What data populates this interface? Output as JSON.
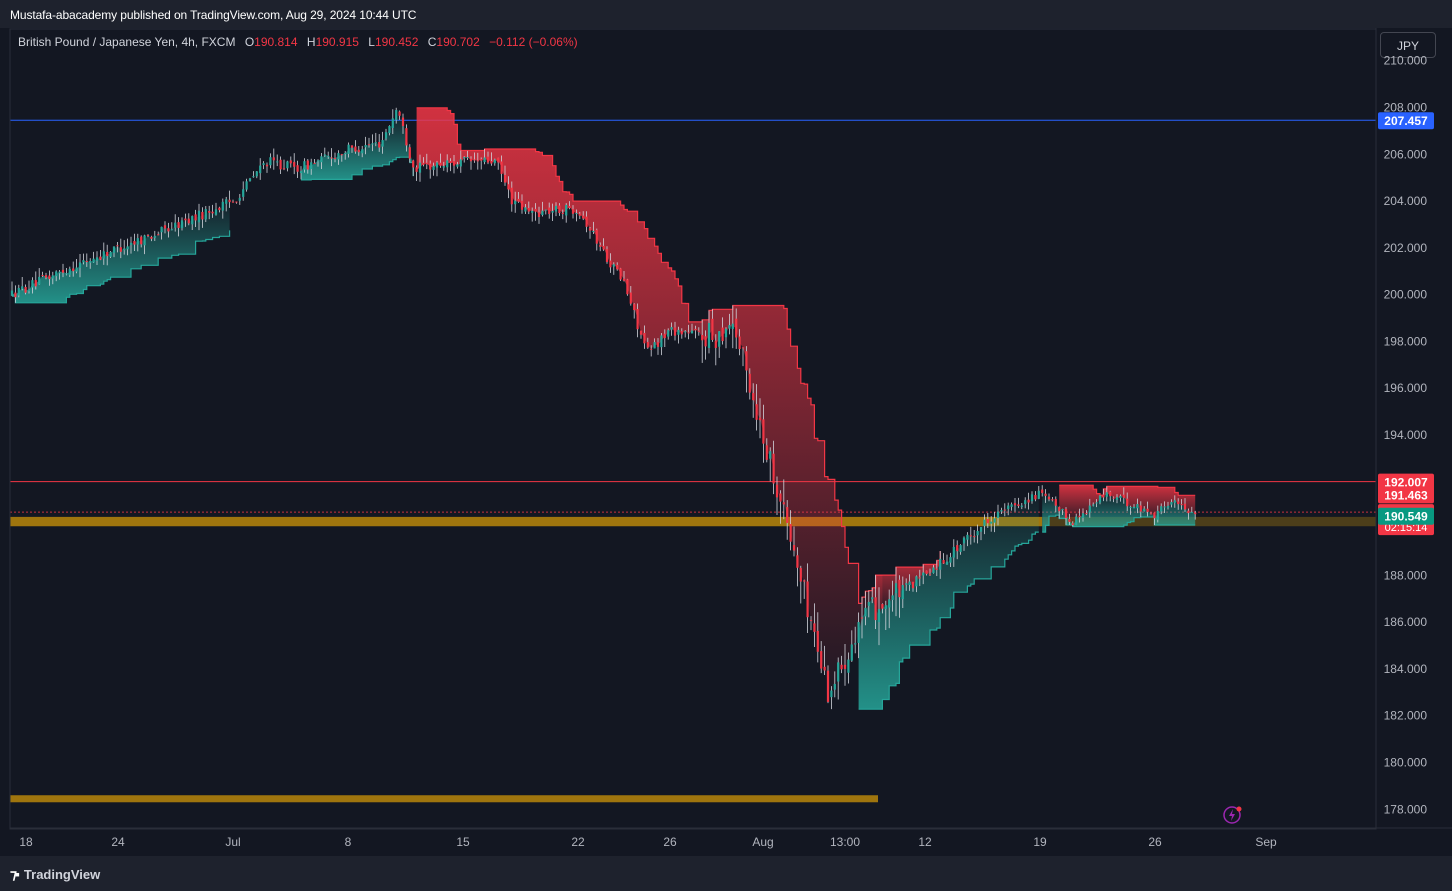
{
  "header": {
    "published": "Mustafa-abacademy published on TradingView.com, Aug 29, 2024 10:44 UTC"
  },
  "legend": {
    "symbol": "British Pound / Japanese Yen, 4h, FXCM",
    "o_label": "O",
    "o_value": "190.814",
    "h_label": "H",
    "h_value": "190.915",
    "l_label": "L",
    "l_value": "190.452",
    "c_label": "C",
    "c_value": "190.702",
    "change": "−0.112 (−0.06%)"
  },
  "currency_button": "JPY",
  "footer": {
    "brand": "TradingView"
  },
  "colors": {
    "up": "#26a69a",
    "down": "#f23645",
    "blue_line": "#2962ff",
    "zone": "#b8860b",
    "background": "#131722"
  },
  "chart_data": {
    "type": "candlestick",
    "y_axis": {
      "ticks": [
        "210.000",
        "208.000",
        "206.000",
        "204.000",
        "202.000",
        "200.000",
        "198.000",
        "196.000",
        "194.000",
        "192.000",
        "190.000",
        "188.000",
        "186.000",
        "184.000",
        "182.000",
        "180.000",
        "178.000"
      ],
      "range": [
        177.2,
        211.4
      ]
    },
    "x_axis": {
      "ticks": [
        {
          "label": "18",
          "date": "2024-06-18"
        },
        {
          "label": "24",
          "date": "2024-06-24"
        },
        {
          "label": "Jul",
          "date": "2024-07-01"
        },
        {
          "label": "8",
          "date": "2024-07-08"
        },
        {
          "label": "15",
          "date": "2024-07-15"
        },
        {
          "label": "22",
          "date": "2024-07-22"
        },
        {
          "label": "26",
          "date": "2024-07-26"
        },
        {
          "label": "Aug",
          "date": "2024-08-01"
        },
        {
          "label": "13:00",
          "date": "2024-08-06"
        },
        {
          "label": "12",
          "date": "2024-08-12"
        },
        {
          "label": "19",
          "date": "2024-08-19"
        },
        {
          "label": "26",
          "date": "2024-08-26"
        },
        {
          "label": "Sep",
          "date": "2024-09-02"
        }
      ]
    },
    "horizontal_lines": [
      {
        "value": 207.457,
        "label": "207.457",
        "color": "#2962ff"
      },
      {
        "value": 192.007,
        "label": "192.007",
        "color": "#f23645"
      }
    ],
    "price_labels": [
      {
        "value": 191.463,
        "label": "191.463",
        "color": "#f23645"
      },
      {
        "value": 190.702,
        "label": "190.702",
        "sub": "02:15:14",
        "color": "#f23645"
      },
      {
        "value": 190.549,
        "label": "190.549",
        "color": "#089981"
      }
    ],
    "zones": [
      {
        "low": 190.1,
        "high": 190.5,
        "color": "#b8860b"
      },
      {
        "low": 178.3,
        "high": 178.6,
        "color": "#b8860b"
      }
    ],
    "price_path": [
      [
        "2024-06-17",
        200.0
      ],
      [
        "2024-06-20",
        200.9
      ],
      [
        "2024-06-24",
        202.0
      ],
      [
        "2024-06-27",
        202.8
      ],
      [
        "2024-07-01",
        204.0
      ],
      [
        "2024-07-03",
        205.7
      ],
      [
        "2024-07-05",
        205.4
      ],
      [
        "2024-07-08",
        206.2
      ],
      [
        "2024-07-10",
        206.5
      ],
      [
        "2024-07-11",
        208.0
      ],
      [
        "2024-07-12",
        205.4
      ],
      [
        "2024-07-15",
        205.7
      ],
      [
        "2024-07-17",
        205.7
      ],
      [
        "2024-07-18",
        204.0
      ],
      [
        "2024-07-19",
        203.5
      ],
      [
        "2024-07-22",
        203.7
      ],
      [
        "2024-07-23",
        202.0
      ],
      [
        "2024-07-24",
        200.5
      ],
      [
        "2024-07-25",
        197.5
      ],
      [
        "2024-07-26",
        198.5
      ],
      [
        "2024-07-29",
        198.2
      ],
      [
        "2024-07-30",
        199.0
      ],
      [
        "2024-07-31",
        196.5
      ],
      [
        "2024-08-01",
        194.0
      ],
      [
        "2024-08-02",
        191.5
      ],
      [
        "2024-08-05",
        183.0
      ],
      [
        "2024-08-06",
        184.5
      ],
      [
        "2024-08-07",
        186.0
      ],
      [
        "2024-08-08",
        186.5
      ],
      [
        "2024-08-12",
        188.0
      ],
      [
        "2024-08-14",
        189.2
      ],
      [
        "2024-08-16",
        190.5
      ],
      [
        "2024-08-19",
        191.5
      ],
      [
        "2024-08-21",
        190.3
      ],
      [
        "2024-08-23",
        191.5
      ],
      [
        "2024-08-26",
        190.6
      ],
      [
        "2024-08-27",
        191.2
      ],
      [
        "2024-08-28",
        190.8
      ],
      [
        "2024-08-29",
        190.7
      ]
    ]
  }
}
